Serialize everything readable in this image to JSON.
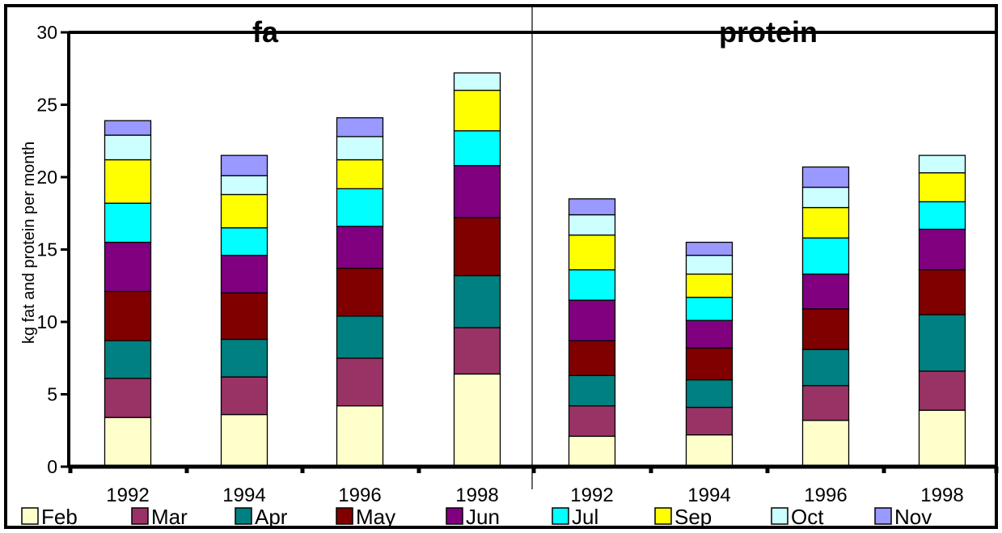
{
  "chart_data": {
    "type": "bar",
    "stacked": true,
    "ylabel": "kg fat and protein per month",
    "ylim": [
      0,
      30
    ],
    "yticks": [
      0,
      5,
      10,
      15,
      20,
      25,
      30
    ],
    "grid": false,
    "legend_position": "bottom",
    "panels": [
      {
        "title": "fa",
        "categories": [
          "1992",
          "1994",
          "1996",
          "1998"
        ],
        "series": [
          {
            "name": "Feb",
            "values": [
              3.4,
              3.6,
              4.2,
              6.4
            ]
          },
          {
            "name": "Mar",
            "values": [
              2.7,
              2.6,
              3.3,
              3.2
            ]
          },
          {
            "name": "Apr",
            "values": [
              2.6,
              2.6,
              2.9,
              3.6
            ]
          },
          {
            "name": "May",
            "values": [
              3.4,
              3.2,
              3.3,
              4.0
            ]
          },
          {
            "name": "Jun",
            "values": [
              3.4,
              2.6,
              2.9,
              3.6
            ]
          },
          {
            "name": "Jul",
            "values": [
              2.7,
              1.9,
              2.6,
              2.4
            ]
          },
          {
            "name": "Sep",
            "values": [
              3.0,
              2.3,
              2.0,
              2.8
            ]
          },
          {
            "name": "Oct",
            "values": [
              1.7,
              1.3,
              1.6,
              1.2
            ]
          },
          {
            "name": "Nov",
            "values": [
              1.0,
              1.4,
              1.3,
              0.0
            ]
          }
        ]
      },
      {
        "title": "protein",
        "categories": [
          "1992",
          "1994",
          "1996",
          "1998"
        ],
        "series": [
          {
            "name": "Feb",
            "values": [
              2.1,
              2.2,
              3.2,
              3.9
            ]
          },
          {
            "name": "Mar",
            "values": [
              2.1,
              1.9,
              2.4,
              2.7
            ]
          },
          {
            "name": "Apr",
            "values": [
              2.1,
              1.9,
              2.5,
              3.9
            ]
          },
          {
            "name": "May",
            "values": [
              2.4,
              2.2,
              2.8,
              3.1
            ]
          },
          {
            "name": "Jun",
            "values": [
              2.8,
              1.9,
              2.4,
              2.8
            ]
          },
          {
            "name": "Jul",
            "values": [
              2.1,
              1.6,
              2.5,
              1.9
            ]
          },
          {
            "name": "Sep",
            "values": [
              2.4,
              1.6,
              2.1,
              2.0
            ]
          },
          {
            "name": "Oct",
            "values": [
              1.4,
              1.3,
              1.4,
              1.2
            ]
          },
          {
            "name": "Nov",
            "values": [
              1.1,
              0.9,
              1.4,
              0.0
            ]
          }
        ]
      }
    ],
    "colors": {
      "Feb": "#ffffcc",
      "Mar": "#993366",
      "Apr": "#008080",
      "May": "#800000",
      "Jun": "#800080",
      "Jul": "#00ffff",
      "Sep": "#ffff00",
      "Oct": "#ccffff",
      "Nov": "#9999ff"
    }
  }
}
